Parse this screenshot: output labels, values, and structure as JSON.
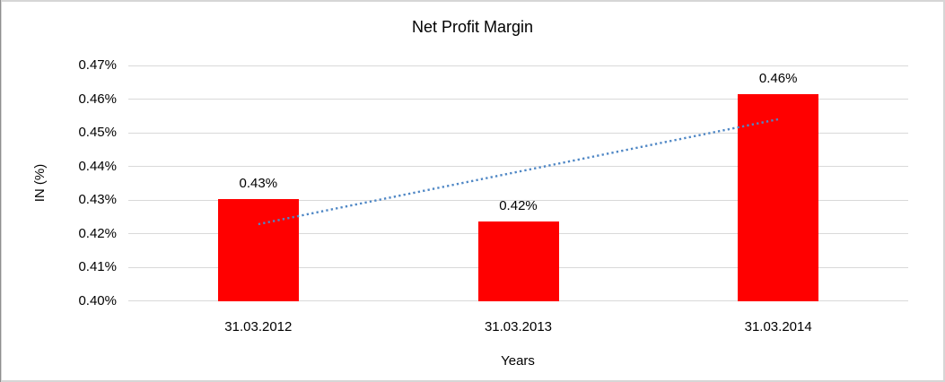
{
  "window": {
    "background": "#ffffff",
    "border_color": "#d6d6d6",
    "border_left_color": "#8f8f8f"
  },
  "chart_data": {
    "type": "bar",
    "title": "Net Profit Margin",
    "xlabel": "Years",
    "ylabel": "IN (%)",
    "categories": [
      "31.03.2012",
      "31.03.2013",
      "31.03.2014"
    ],
    "values": [
      0.4303,
      0.4235,
      0.4614
    ],
    "data_labels": [
      "0.43%",
      "0.42%",
      "0.46%"
    ],
    "ylim": [
      0.4,
      0.47
    ],
    "ytick_step": 0.01,
    "ytick_labels": [
      "0.47%",
      "0.46%",
      "0.45%",
      "0.44%",
      "0.43%",
      "0.42%",
      "0.41%",
      "0.40%"
    ],
    "grid": true,
    "legend": false,
    "bar_color": "#ff0000",
    "gridline_color": "#d9d9d9",
    "text_color": "#000000",
    "trendline": {
      "style": "dotted",
      "color": "#4f87c5",
      "start_value": 0.4228,
      "end_value": 0.454
    }
  }
}
